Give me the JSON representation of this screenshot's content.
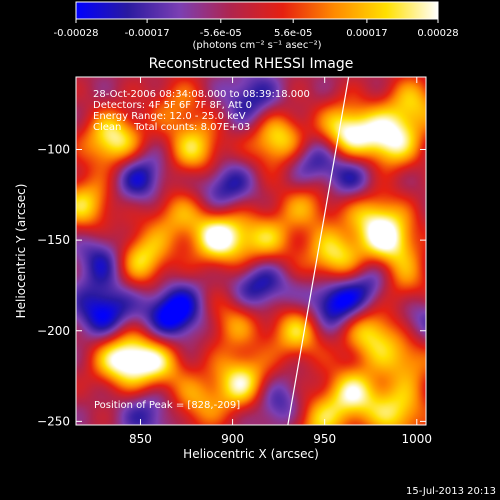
{
  "chart_data": {
    "type": "heatmap",
    "title": "Reconstructed RHESSI Image",
    "xlabel": "Heliocentric X (arcsec)",
    "ylabel": "Heliocentric Y (arcsec)",
    "xlim": [
      815,
      1005
    ],
    "ylim": [
      -252,
      -60
    ],
    "x_ticks": [
      850,
      900,
      950,
      1000
    ],
    "y_ticks": [
      -100,
      -150,
      -200,
      -250
    ],
    "colorbar": {
      "range": [
        -0.00028,
        0.00028
      ],
      "ticks": [
        -0.00028,
        -0.00017,
        -5.6e-05,
        5.6e-05,
        0.00017,
        0.00028
      ],
      "tick_labels": [
        "-0.00028",
        "-0.00017",
        "-5.6e-05",
        "5.6e-05",
        "0.00017",
        "0.00028"
      ],
      "unit_label": "(photons cm⁻² s⁻¹ asec⁻²)",
      "colors": [
        "#0000ff",
        "#2a1aa0",
        "#7b3fb3",
        "#b0244d",
        "#e62010",
        "#ff8a00",
        "#ffe000",
        "#ffffff"
      ]
    },
    "annotations": [
      "28-Oct-2006 08:34:08.000 to 08:39:18.000",
      "Detectors: 4F 5F 6F 7F 8F, Att 0",
      "Energy Range: 12.0 - 25.0 keV",
      "Clean    Total counts: 8.07E+03"
    ],
    "peak_label": "Position of Peak = [828,-209]",
    "peak": [
      828,
      -209
    ],
    "limb_line": [
      [
        963,
        -60
      ],
      [
        930,
        -252
      ]
    ],
    "blobs": [
      {
        "x": 893,
        "y": -148,
        "v": 1.0
      },
      {
        "x": 835,
        "y": -95,
        "v": 0.9
      },
      {
        "x": 850,
        "y": -160,
        "v": 0.8
      },
      {
        "x": 840,
        "y": -215,
        "v": 0.95
      },
      {
        "x": 858,
        "y": -218,
        "v": 0.7
      },
      {
        "x": 880,
        "y": -100,
        "v": 0.7
      },
      {
        "x": 925,
        "y": -95,
        "v": 0.85
      },
      {
        "x": 962,
        "y": -90,
        "v": 0.95
      },
      {
        "x": 985,
        "y": -95,
        "v": 0.9
      },
      {
        "x": 998,
        "y": -75,
        "v": 0.6
      },
      {
        "x": 918,
        "y": -150,
        "v": 0.6
      },
      {
        "x": 940,
        "y": -130,
        "v": 0.5
      },
      {
        "x": 955,
        "y": -160,
        "v": 0.8
      },
      {
        "x": 975,
        "y": -135,
        "v": 0.6
      },
      {
        "x": 985,
        "y": -150,
        "v": 0.85
      },
      {
        "x": 990,
        "y": -175,
        "v": 0.7
      },
      {
        "x": 975,
        "y": -200,
        "v": 0.8
      },
      {
        "x": 965,
        "y": -235,
        "v": 0.8
      },
      {
        "x": 990,
        "y": -245,
        "v": 0.7
      },
      {
        "x": 995,
        "y": -215,
        "v": 0.6
      },
      {
        "x": 905,
        "y": -228,
        "v": 0.85
      },
      {
        "x": 880,
        "y": -240,
        "v": 0.5
      },
      {
        "x": 935,
        "y": -200,
        "v": 0.7
      },
      {
        "x": 900,
        "y": -195,
        "v": 0.5
      },
      {
        "x": 870,
        "y": -75,
        "v": 0.4
      },
      {
        "x": 820,
        "y": -130,
        "v": 0.7
      },
      {
        "x": 868,
        "y": -135,
        "v": 0.5
      },
      {
        "x": 945,
        "y": -250,
        "v": 0.6
      },
      {
        "x": 850,
        "y": -115,
        "v": -0.6
      },
      {
        "x": 868,
        "y": -190,
        "v": -0.85
      },
      {
        "x": 830,
        "y": -190,
        "v": -0.7
      },
      {
        "x": 895,
        "y": -120,
        "v": -0.55
      },
      {
        "x": 915,
        "y": -175,
        "v": -0.6
      },
      {
        "x": 955,
        "y": -185,
        "v": -0.8
      },
      {
        "x": 942,
        "y": -105,
        "v": -0.55
      },
      {
        "x": 965,
        "y": -115,
        "v": -0.5
      },
      {
        "x": 978,
        "y": -175,
        "v": -0.7
      },
      {
        "x": 925,
        "y": -240,
        "v": -0.5
      },
      {
        "x": 830,
        "y": -160,
        "v": -0.55
      },
      {
        "x": 910,
        "y": -72,
        "v": -0.5
      },
      {
        "x": 1000,
        "y": -195,
        "v": -0.45
      },
      {
        "x": 855,
        "y": -245,
        "v": -0.45
      }
    ]
  },
  "footer": {
    "timestamp": "15-Jul-2013 20:13"
  }
}
